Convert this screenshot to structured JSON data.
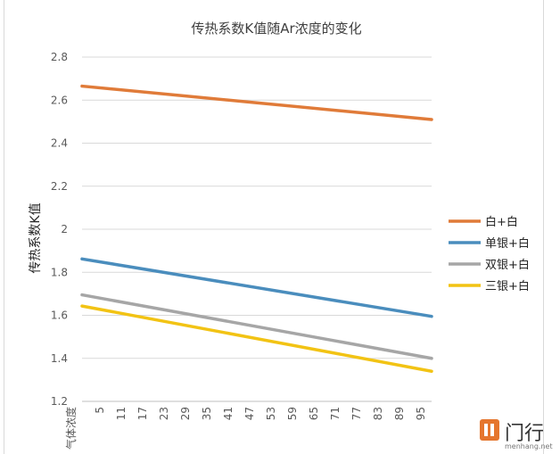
{
  "chart_data": {
    "type": "line",
    "title": "传热系数K值随Ar浓度的变化",
    "ylabel": "传热系数K值",
    "xlabel": "",
    "first_tick_label": "气体浓度",
    "x_ticks": [
      5,
      11,
      17,
      23,
      29,
      35,
      41,
      47,
      53,
      59,
      65,
      71,
      77,
      83,
      89,
      95
    ],
    "x_range": [
      0,
      98
    ],
    "ylim": [
      1.2,
      2.8
    ],
    "y_ticks": [
      "1.2",
      "1.4",
      "1.6",
      "1.8",
      "2",
      "2.2",
      "2.4",
      "2.6",
      "2.8"
    ],
    "grid": true,
    "legend_position": "right",
    "series": [
      {
        "name": "白+白",
        "color": "#e07b39",
        "x": [
          0,
          98
        ],
        "y": [
          2.665,
          2.51
        ]
      },
      {
        "name": "单银+白",
        "color": "#4a8dbd",
        "x": [
          0,
          98
        ],
        "y": [
          1.862,
          1.595
        ]
      },
      {
        "name": "双银+白",
        "color": "#a6a6a6",
        "x": [
          0,
          98
        ],
        "y": [
          1.695,
          1.4
        ]
      },
      {
        "name": "三银+白",
        "color": "#f2c314",
        "x": [
          0,
          98
        ],
        "y": [
          1.643,
          1.34
        ]
      }
    ]
  },
  "watermark": {
    "name": "门行",
    "sub": "menhang.net"
  }
}
